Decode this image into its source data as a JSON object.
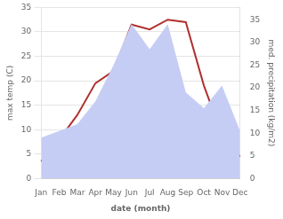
{
  "chart_data": {
    "type": "line",
    "xlabel": "date (month)",
    "ylabel": "max temp (C)",
    "y2label": "med. precipitation (kg/m2)",
    "categories": [
      "Jan",
      "Feb",
      "Mar",
      "Apr",
      "May",
      "Jun",
      "Jul",
      "Aug",
      "Sep",
      "Oct",
      "Nov",
      "Dec"
    ],
    "series": [
      {
        "type": "area",
        "color": "#c5cdf5",
        "axis": "y2",
        "values": [
          9.0,
          10.5,
          12.0,
          17.0,
          25.0,
          34.0,
          28.5,
          34.0,
          19.0,
          15.5,
          20.5,
          10.5
        ]
      },
      {
        "type": "line",
        "color": "#b03030",
        "values": [
          3.5,
          8.0,
          13.0,
          19.5,
          22.0,
          31.5,
          30.5,
          32.5,
          32.0,
          19.0,
          9.0,
          4.5
        ]
      }
    ],
    "ylim": [
      0,
      35
    ],
    "yticks": [
      0,
      5,
      10,
      15,
      20,
      25,
      30,
      35
    ],
    "y2lim": [
      0,
      37.7
    ],
    "y2ticks": [
      0,
      5,
      10,
      15,
      20,
      25,
      30,
      35
    ],
    "grid": true
  }
}
